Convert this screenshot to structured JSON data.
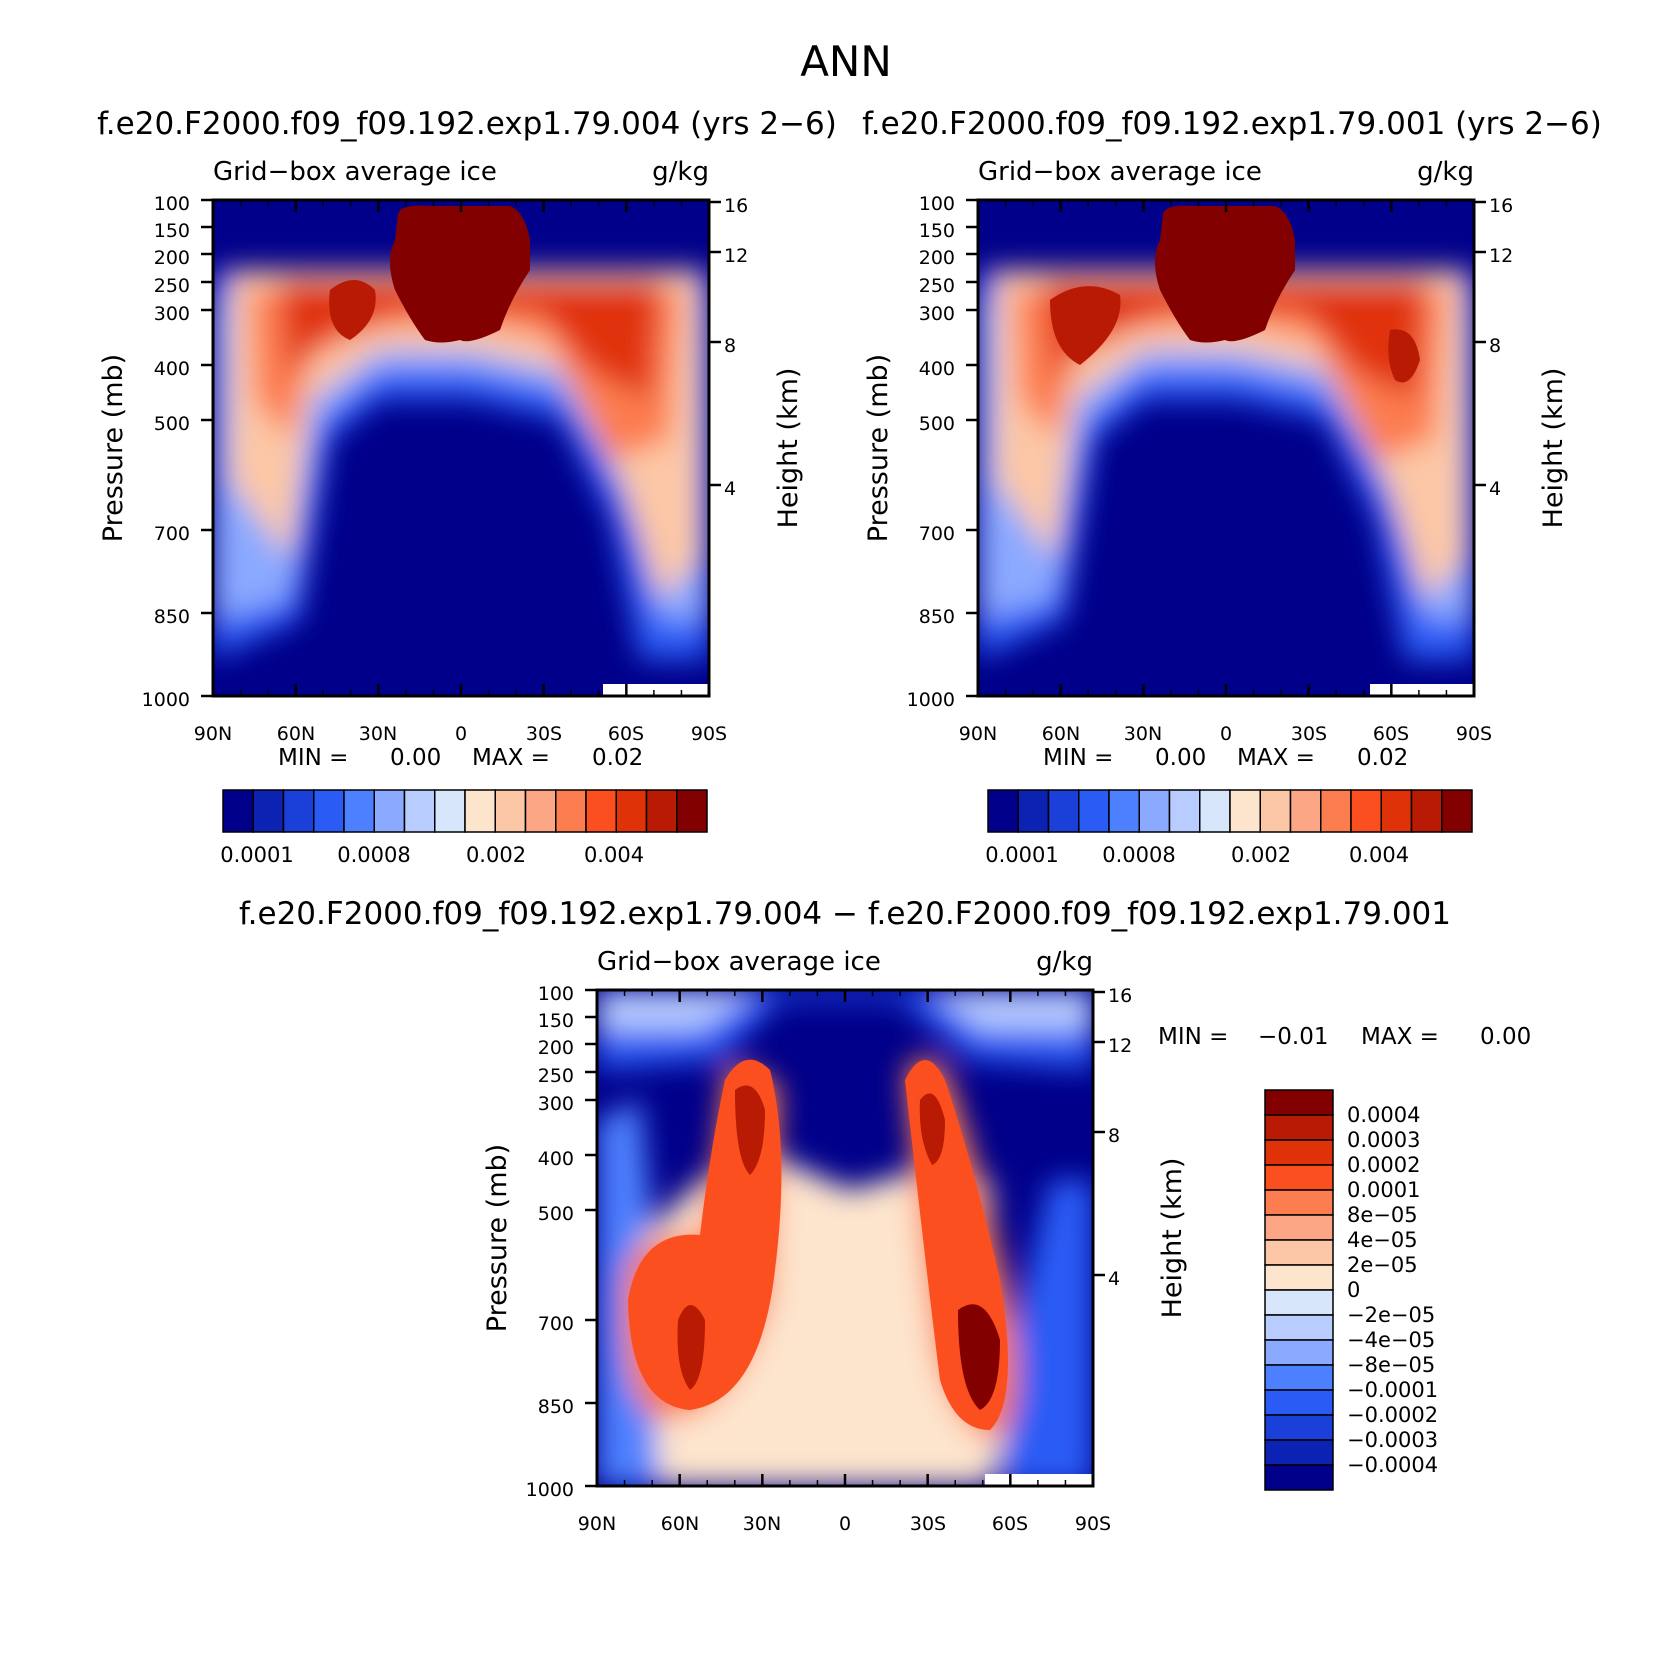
{
  "figure": {
    "title": "ANN",
    "palette_main": [
      "#00008a",
      "#0b22b3",
      "#1b3fd9",
      "#2a5cf5",
      "#4d80ff",
      "#8aa9ff",
      "#b8ccff",
      "#d8e6fb",
      "#fde4cc",
      "#fcc7a6",
      "#fca686",
      "#fc7d4f",
      "#fc4f1f",
      "#e03208",
      "#b81a04",
      "#830000"
    ],
    "palette_diff": [
      "#00008a",
      "#0b22b3",
      "#1b3fd9",
      "#2a5cf5",
      "#4d80ff",
      "#8aa9ff",
      "#b8ccff",
      "#d8e6fb",
      "#fde4cc",
      "#fcc7a6",
      "#fca686",
      "#fc7d4f",
      "#fc4f1f",
      "#e03208",
      "#b81a04",
      "#830000"
    ]
  },
  "chart_data": [
    {
      "type": "heatmap",
      "id": "left",
      "title": "f.e20.F2000.f09_f09.192.exp1.79.004 (yrs 2−6)",
      "left_label": "Grid−box average ice",
      "right_label": "g/kg",
      "xlabel": "",
      "ylabel": "Pressure (mb)",
      "y2label": "Height (km)",
      "xticks": [
        "90N",
        "60N",
        "30N",
        "0",
        "30S",
        "60S",
        "90S"
      ],
      "yticks": [
        100,
        150,
        200,
        250,
        300,
        400,
        500,
        700,
        850,
        1000
      ],
      "y2ticks": [
        16,
        12,
        8,
        4
      ],
      "stats": {
        "min_label": "MIN =",
        "min_value": "0.00",
        "max_label": "MAX =",
        "max_value": "0.02"
      },
      "colorbar_labels": [
        "0.0001",
        "0.0008",
        "0.002",
        "0.004"
      ]
    },
    {
      "type": "heatmap",
      "id": "right",
      "title": "f.e20.F2000.f09_f09.192.exp1.79.001 (yrs 2−6)",
      "left_label": "Grid−box average ice",
      "right_label": "g/kg",
      "xlabel": "",
      "ylabel": "Pressure (mb)",
      "y2label": "Height (km)",
      "xticks": [
        "90N",
        "60N",
        "30N",
        "0",
        "30S",
        "60S",
        "90S"
      ],
      "yticks": [
        100,
        150,
        200,
        250,
        300,
        400,
        500,
        700,
        850,
        1000
      ],
      "y2ticks": [
        16,
        12,
        8,
        4
      ],
      "stats": {
        "min_label": "MIN =",
        "min_value": "0.00",
        "max_label": "MAX =",
        "max_value": "0.02"
      },
      "colorbar_labels": [
        "0.0001",
        "0.0008",
        "0.002",
        "0.004"
      ]
    },
    {
      "type": "heatmap",
      "id": "diff",
      "title": "f.e20.F2000.f09_f09.192.exp1.79.004 − f.e20.F2000.f09_f09.192.exp1.79.001",
      "left_label": "Grid−box average ice",
      "right_label": "g/kg",
      "xlabel": "",
      "ylabel": "Pressure (mb)",
      "y2label": "Height (km)",
      "xticks": [
        "90N",
        "60N",
        "30N",
        "0",
        "30S",
        "60S",
        "90S"
      ],
      "yticks": [
        100,
        150,
        200,
        250,
        300,
        400,
        500,
        700,
        850,
        1000
      ],
      "y2ticks": [
        16,
        12,
        8,
        4
      ],
      "stats": {
        "min_label": "MIN =",
        "min_value": "−0.01",
        "max_label": "MAX =",
        "max_value": "0.00"
      },
      "colorbar_labels": [
        "0.0004",
        "0.0003",
        "0.0002",
        "0.0001",
        "8e−05",
        "4e−05",
        "2e−05",
        "0",
        "−2e−05",
        "−4e−05",
        "−8e−05",
        "−0.0001",
        "−0.0002",
        "−0.0003",
        "−0.0004"
      ]
    }
  ]
}
